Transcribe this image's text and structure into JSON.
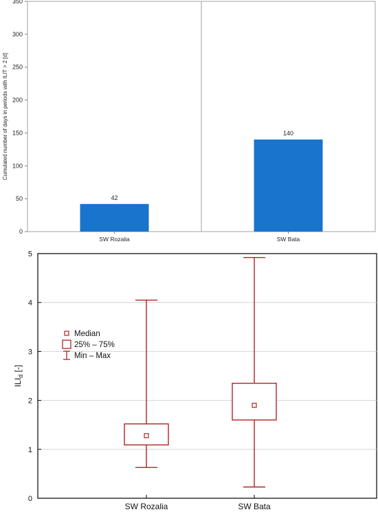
{
  "chart_data": [
    {
      "type": "bar",
      "categories": [
        "SW Rozalia",
        "SW Bata"
      ],
      "values": [
        42,
        140
      ],
      "data_labels": [
        "42",
        "140"
      ],
      "ylabel": "Cumulated number of days in periods with ILIT > 2 [d]",
      "ylim": [
        0,
        350
      ],
      "yticks": [
        0,
        50,
        100,
        150,
        200,
        250,
        300,
        350
      ],
      "ytick_labels": [
        "0",
        "50",
        "100",
        "150",
        "200",
        "250",
        "300",
        "350"
      ],
      "grid": false,
      "bar_color": "#1874cd"
    },
    {
      "type": "box",
      "categories": [
        "SW Rozalia",
        "SW Bata"
      ],
      "boxes": [
        {
          "category": "SW Rozalia",
          "min": 0.63,
          "q1": 1.09,
          "median": 1.28,
          "q3": 1.52,
          "max": 4.05
        },
        {
          "category": "SW Bata",
          "min": 0.23,
          "q1": 1.6,
          "median": 1.9,
          "q3": 2.35,
          "max": 4.92
        }
      ],
      "ylabel_main": "ILI",
      "ylabel_sub": "d",
      "ylabel_unit": " [-]",
      "ylim": [
        0,
        5
      ],
      "yticks": [
        0,
        1,
        2,
        3,
        4,
        5
      ],
      "ytick_labels": [
        "0",
        "1",
        "2",
        "3",
        "4",
        "5"
      ],
      "grid": true,
      "legend": {
        "placement": "left",
        "entries": [
          {
            "marker": "median",
            "label": "Median"
          },
          {
            "marker": "box",
            "label": "25% – 75%"
          },
          {
            "marker": "whisker",
            "label": "Min – Max"
          }
        ]
      },
      "color": "#b22222"
    }
  ]
}
